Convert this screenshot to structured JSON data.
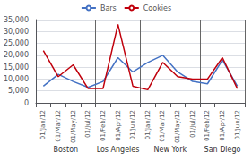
{
  "chart_data": {
    "type": "line",
    "categories": [
      "01/Jan/12",
      "01/Mar/12",
      "01/May/12",
      "01/Jul/12",
      "01/Feb/12",
      "01/Apr/12",
      "01/Jun/12",
      "01/Jan/12",
      "01/Mar/12",
      "01/May/12",
      "01/Jul/12",
      "01/Feb/12",
      "01/Apr/12",
      "01/Jun/12"
    ],
    "groups": [
      {
        "name": "Boston",
        "count": 4
      },
      {
        "name": "Los Angeles",
        "count": 3
      },
      {
        "name": "New York",
        "count": 4
      },
      {
        "name": "San Diego",
        "count": 3
      }
    ],
    "series": [
      {
        "name": "Bars",
        "color": "#4472C4",
        "values": [
          7000,
          12000,
          9000,
          6500,
          9000,
          19000,
          13000,
          17000,
          20000,
          13000,
          9000,
          8000,
          18000,
          7000
        ]
      },
      {
        "name": "Cookies",
        "color": "#C0000C",
        "values": [
          22000,
          11000,
          16000,
          6000,
          6000,
          33000,
          7000,
          5500,
          17000,
          11000,
          10000,
          10000,
          19000,
          6000
        ]
      }
    ],
    "ylim": [
      0,
      35000
    ],
    "yticks": [
      0,
      {
        "value": 5000,
        "label": "5,000"
      },
      {
        "value": 10000,
        "label": "10,000"
      },
      {
        "value": 15000,
        "label": "15,000"
      },
      {
        "value": 20000,
        "label": "20,000"
      },
      {
        "value": 25000,
        "label": "25,000"
      },
      {
        "value": 30000,
        "label": "30,000"
      },
      {
        "value": 35000,
        "label": "35,000"
      }
    ],
    "grid": true,
    "legend": "top"
  }
}
